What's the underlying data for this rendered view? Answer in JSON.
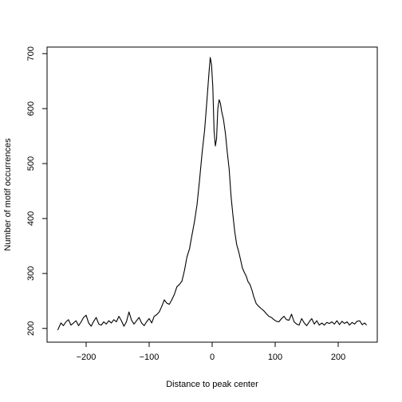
{
  "chart_data": {
    "type": "line",
    "title": "",
    "xlabel": "Distance to peak center",
    "ylabel": "Number of motif occurrences",
    "xlim": [
      -262,
      262
    ],
    "ylim": [
      175,
      712
    ],
    "xticks": [
      -200,
      -100,
      0,
      100,
      200
    ],
    "yticks": [
      200,
      300,
      400,
      500,
      600,
      700
    ],
    "xtick_labels": [
      "−200",
      "−100",
      "0",
      "100",
      "200"
    ],
    "ytick_labels": [
      "200",
      "300",
      "400",
      "500",
      "600",
      "700"
    ],
    "grid": false,
    "series": [
      {
        "points": [
          [
            -245,
            197
          ],
          [
            -240,
            210
          ],
          [
            -236,
            205
          ],
          [
            -232,
            212
          ],
          [
            -228,
            216
          ],
          [
            -224,
            206
          ],
          [
            -220,
            210
          ],
          [
            -216,
            214
          ],
          [
            -212,
            205
          ],
          [
            -208,
            212
          ],
          [
            -204,
            220
          ],
          [
            -200,
            224
          ],
          [
            -196,
            210
          ],
          [
            -192,
            204
          ],
          [
            -188,
            213
          ],
          [
            -184,
            220
          ],
          [
            -180,
            208
          ],
          [
            -176,
            206
          ],
          [
            -172,
            212
          ],
          [
            -168,
            208
          ],
          [
            -164,
            214
          ],
          [
            -160,
            210
          ],
          [
            -156,
            216
          ],
          [
            -152,
            212
          ],
          [
            -148,
            222
          ],
          [
            -144,
            214
          ],
          [
            -140,
            204
          ],
          [
            -136,
            212
          ],
          [
            -132,
            230
          ],
          [
            -128,
            215
          ],
          [
            -124,
            208
          ],
          [
            -120,
            214
          ],
          [
            -116,
            220
          ],
          [
            -112,
            210
          ],
          [
            -108,
            205
          ],
          [
            -104,
            212
          ],
          [
            -100,
            218
          ],
          [
            -96,
            210
          ],
          [
            -92,
            222
          ],
          [
            -88,
            225
          ],
          [
            -84,
            230
          ],
          [
            -80,
            240
          ],
          [
            -76,
            252
          ],
          [
            -72,
            246
          ],
          [
            -68,
            244
          ],
          [
            -64,
            252
          ],
          [
            -60,
            262
          ],
          [
            -56,
            276
          ],
          [
            -52,
            280
          ],
          [
            -48,
            286
          ],
          [
            -44,
            305
          ],
          [
            -40,
            330
          ],
          [
            -36,
            345
          ],
          [
            -32,
            370
          ],
          [
            -28,
            395
          ],
          [
            -24,
            425
          ],
          [
            -20,
            470
          ],
          [
            -16,
            520
          ],
          [
            -12,
            560
          ],
          [
            -8,
            620
          ],
          [
            -5,
            665
          ],
          [
            -3,
            693
          ],
          [
            -1,
            680
          ],
          [
            1,
            640
          ],
          [
            3,
            560
          ],
          [
            5,
            532
          ],
          [
            7,
            545
          ],
          [
            9,
            600
          ],
          [
            11,
            616
          ],
          [
            13,
            610
          ],
          [
            15,
            595
          ],
          [
            18,
            580
          ],
          [
            21,
            555
          ],
          [
            24,
            520
          ],
          [
            27,
            490
          ],
          [
            30,
            440
          ],
          [
            33,
            405
          ],
          [
            36,
            375
          ],
          [
            39,
            352
          ],
          [
            42,
            340
          ],
          [
            45,
            325
          ],
          [
            48,
            310
          ],
          [
            51,
            302
          ],
          [
            54,
            295
          ],
          [
            57,
            285
          ],
          [
            60,
            280
          ],
          [
            63,
            270
          ],
          [
            66,
            258
          ],
          [
            70,
            245
          ],
          [
            74,
            240
          ],
          [
            78,
            236
          ],
          [
            82,
            232
          ],
          [
            86,
            227
          ],
          [
            90,
            222
          ],
          [
            94,
            220
          ],
          [
            98,
            216
          ],
          [
            102,
            213
          ],
          [
            106,
            212
          ],
          [
            110,
            218
          ],
          [
            114,
            222
          ],
          [
            118,
            216
          ],
          [
            122,
            215
          ],
          [
            126,
            226
          ],
          [
            130,
            212
          ],
          [
            134,
            208
          ],
          [
            138,
            206
          ],
          [
            142,
            218
          ],
          [
            146,
            210
          ],
          [
            150,
            205
          ],
          [
            154,
            212
          ],
          [
            158,
            218
          ],
          [
            162,
            208
          ],
          [
            166,
            214
          ],
          [
            170,
            206
          ],
          [
            174,
            210
          ],
          [
            178,
            206
          ],
          [
            182,
            211
          ],
          [
            186,
            209
          ],
          [
            190,
            212
          ],
          [
            194,
            208
          ],
          [
            198,
            214
          ],
          [
            202,
            207
          ],
          [
            206,
            213
          ],
          [
            210,
            209
          ],
          [
            214,
            212
          ],
          [
            218,
            206
          ],
          [
            222,
            211
          ],
          [
            226,
            208
          ],
          [
            230,
            213
          ],
          [
            234,
            214
          ],
          [
            238,
            207
          ],
          [
            242,
            210
          ],
          [
            245,
            206
          ]
        ]
      }
    ]
  }
}
